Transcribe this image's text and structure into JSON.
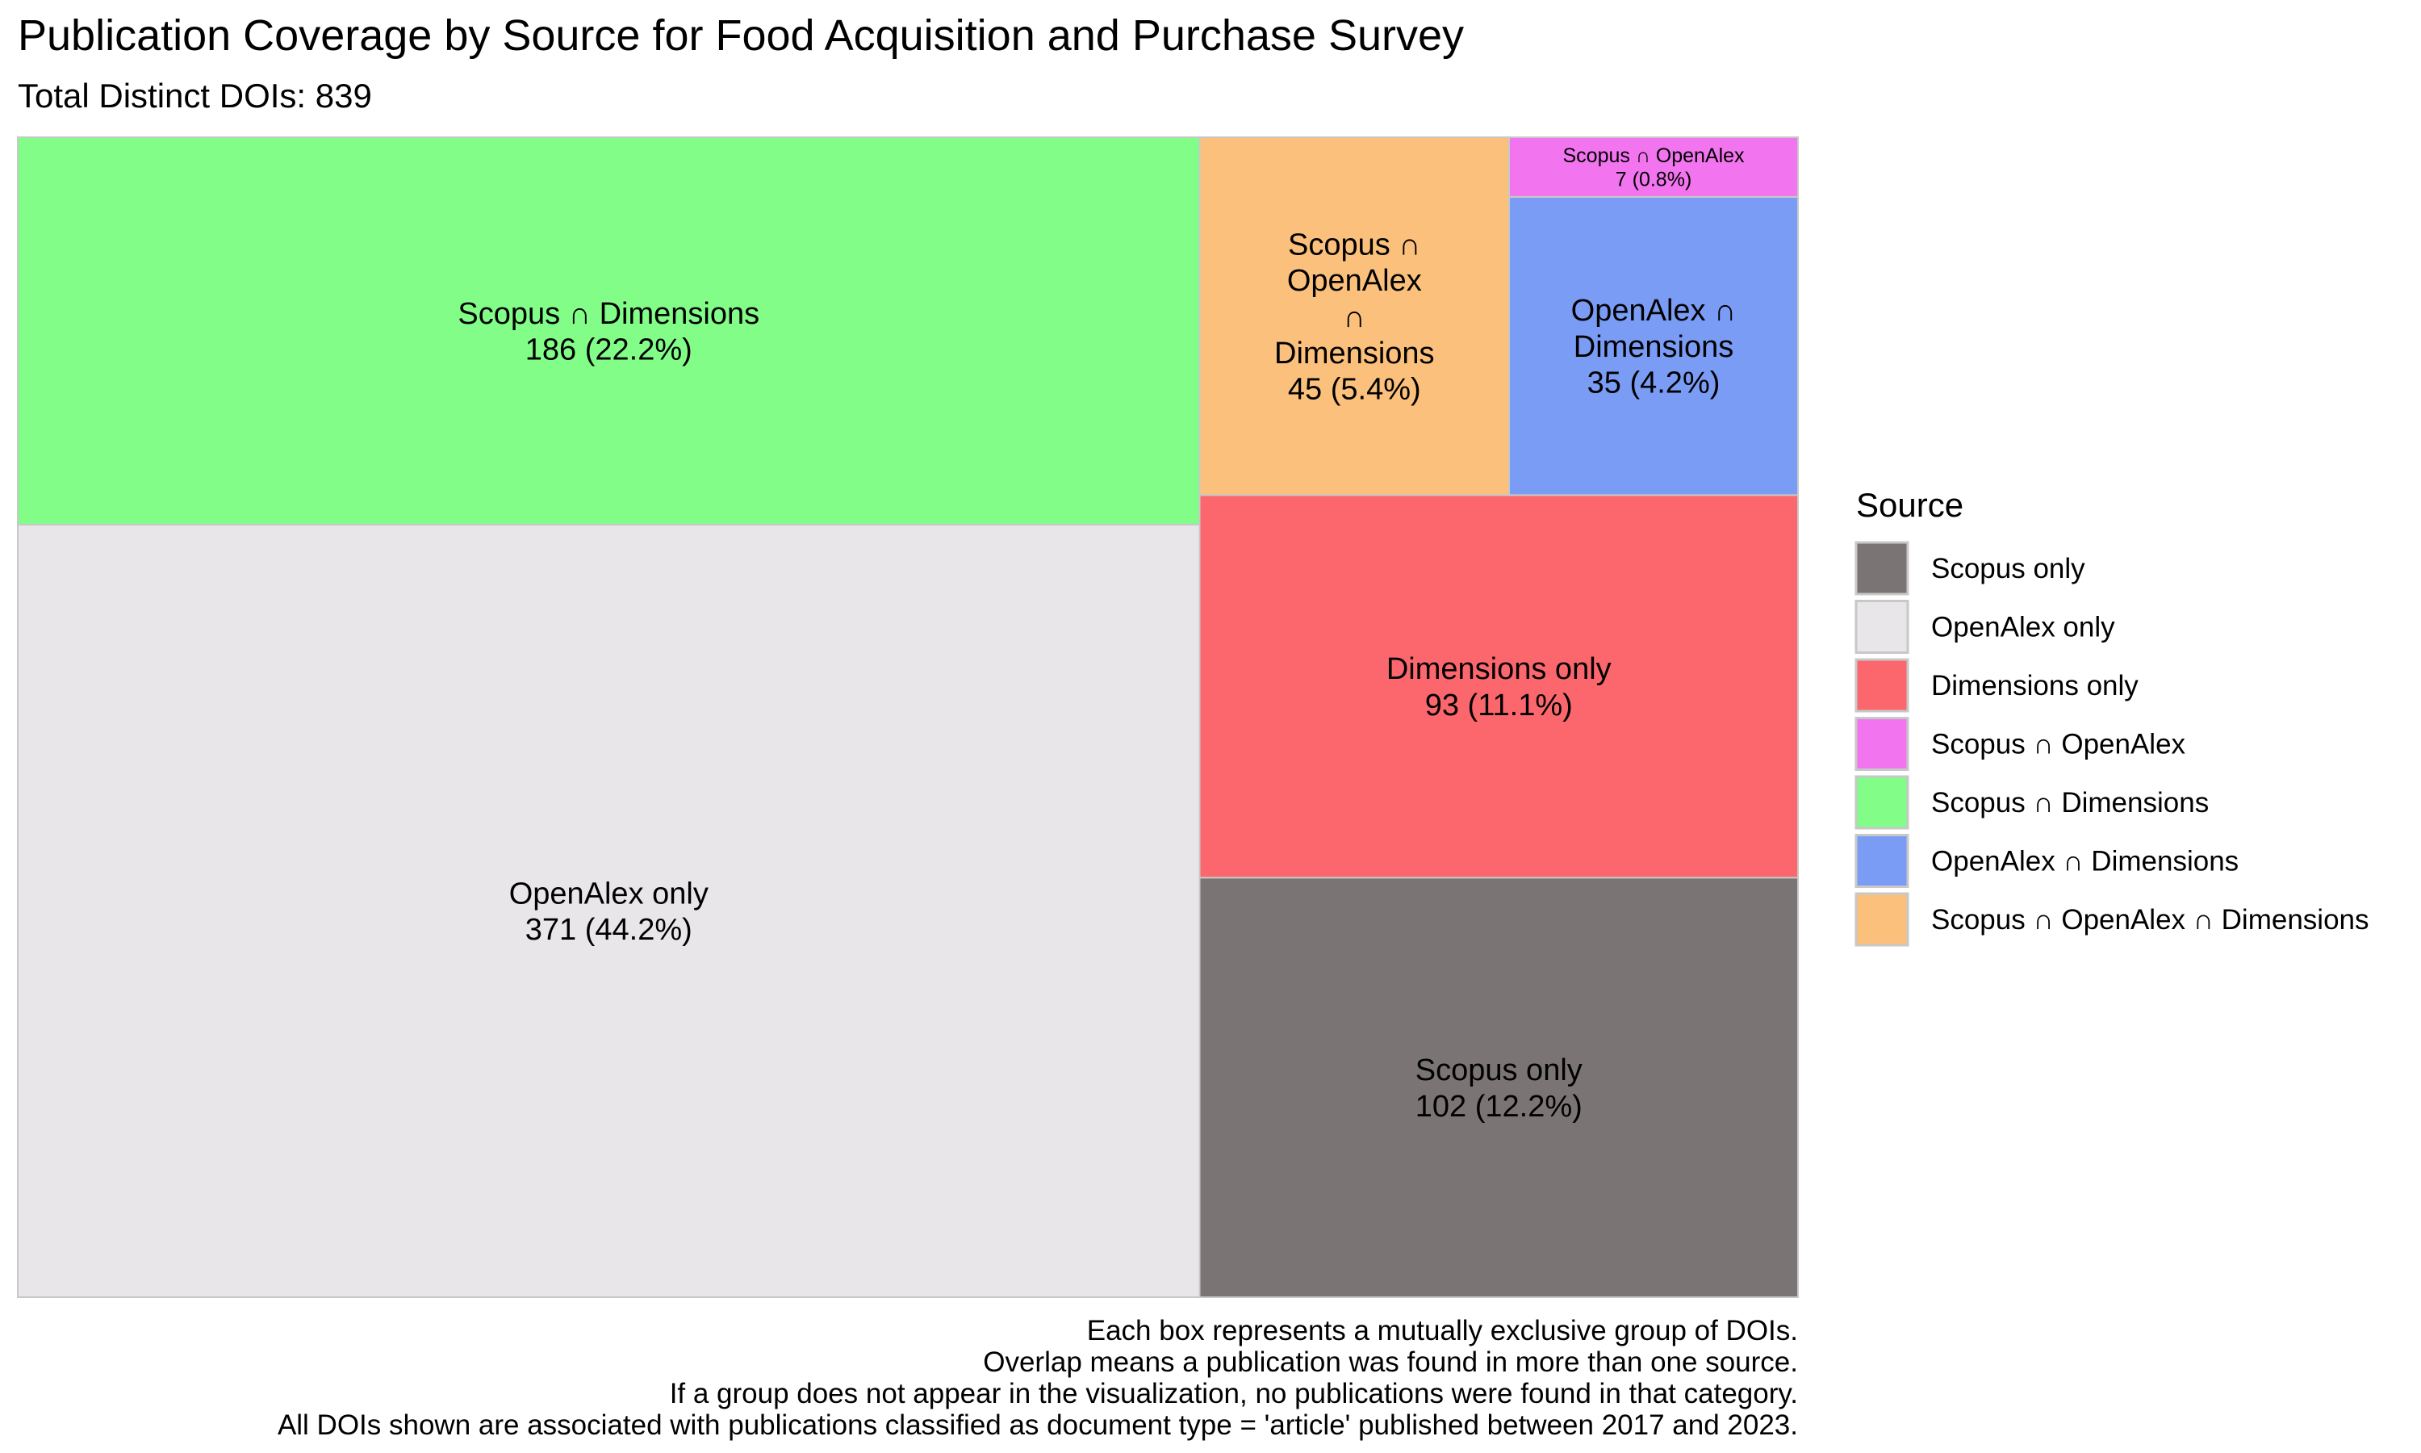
{
  "chart_data": {
    "type": "treemap",
    "title": "Publication Coverage by Source for Food Acquisition and Purchase Survey",
    "subtitle": "Total Distinct DOIs: 839",
    "total": 839,
    "legend": {
      "title": "Source",
      "position": "right",
      "entries": [
        {
          "name": "Scopus only",
          "color": "#7a7475"
        },
        {
          "name": "OpenAlex only",
          "color": "#e8e6e9"
        },
        {
          "name": "Dimensions only",
          "color": "#fb676c"
        },
        {
          "name": "Scopus ∩ OpenAlex",
          "color": "#f274ef"
        },
        {
          "name": "Scopus ∩ Dimensions",
          "color": "#82fd88"
        },
        {
          "name": "OpenAlex ∩ Dimensions",
          "color": "#7a9cf5"
        },
        {
          "name": "Scopus ∩ OpenAlex ∩ Dimensions",
          "color": "#fbc07b"
        }
      ]
    },
    "cells": [
      {
        "name": "OpenAlex only",
        "value": 371,
        "percent": "44.2%",
        "label": [
          "OpenAlex only",
          "371 (44.2%)"
        ]
      },
      {
        "name": "Scopus ∩ Dimensions",
        "value": 186,
        "percent": "22.2%",
        "label": [
          "Scopus ∩ Dimensions",
          "186 (22.2%)"
        ]
      },
      {
        "name": "Scopus only",
        "value": 102,
        "percent": "12.2%",
        "label": [
          "Scopus only",
          "102 (12.2%)"
        ]
      },
      {
        "name": "Dimensions only",
        "value": 93,
        "percent": "11.1%",
        "label": [
          "Dimensions only",
          "93 (11.1%)"
        ]
      },
      {
        "name": "Scopus ∩ OpenAlex ∩ Dimensions",
        "value": 45,
        "percent": "5.4%",
        "label": [
          "Scopus ∩",
          "OpenAlex",
          "∩",
          "Dimensions",
          "45 (5.4%)"
        ]
      },
      {
        "name": "OpenAlex ∩ Dimensions",
        "value": 35,
        "percent": "4.2%",
        "label": [
          "OpenAlex ∩",
          "Dimensions",
          "35 (4.2%)"
        ]
      },
      {
        "name": "Scopus ∩ OpenAlex",
        "value": 7,
        "percent": "0.8%",
        "label": [
          "Scopus ∩ OpenAlex",
          "7 (0.8%)"
        ]
      }
    ],
    "caption": [
      "Each box represents a mutually exclusive group of DOIs.",
      "Overlap means a publication was found in more than one source.",
      "If a group does not appear in the visualization, no publications were found in that category.",
      "All DOIs shown are associated with publications classified as document type = 'article' published between 2017 and 2023."
    ]
  }
}
